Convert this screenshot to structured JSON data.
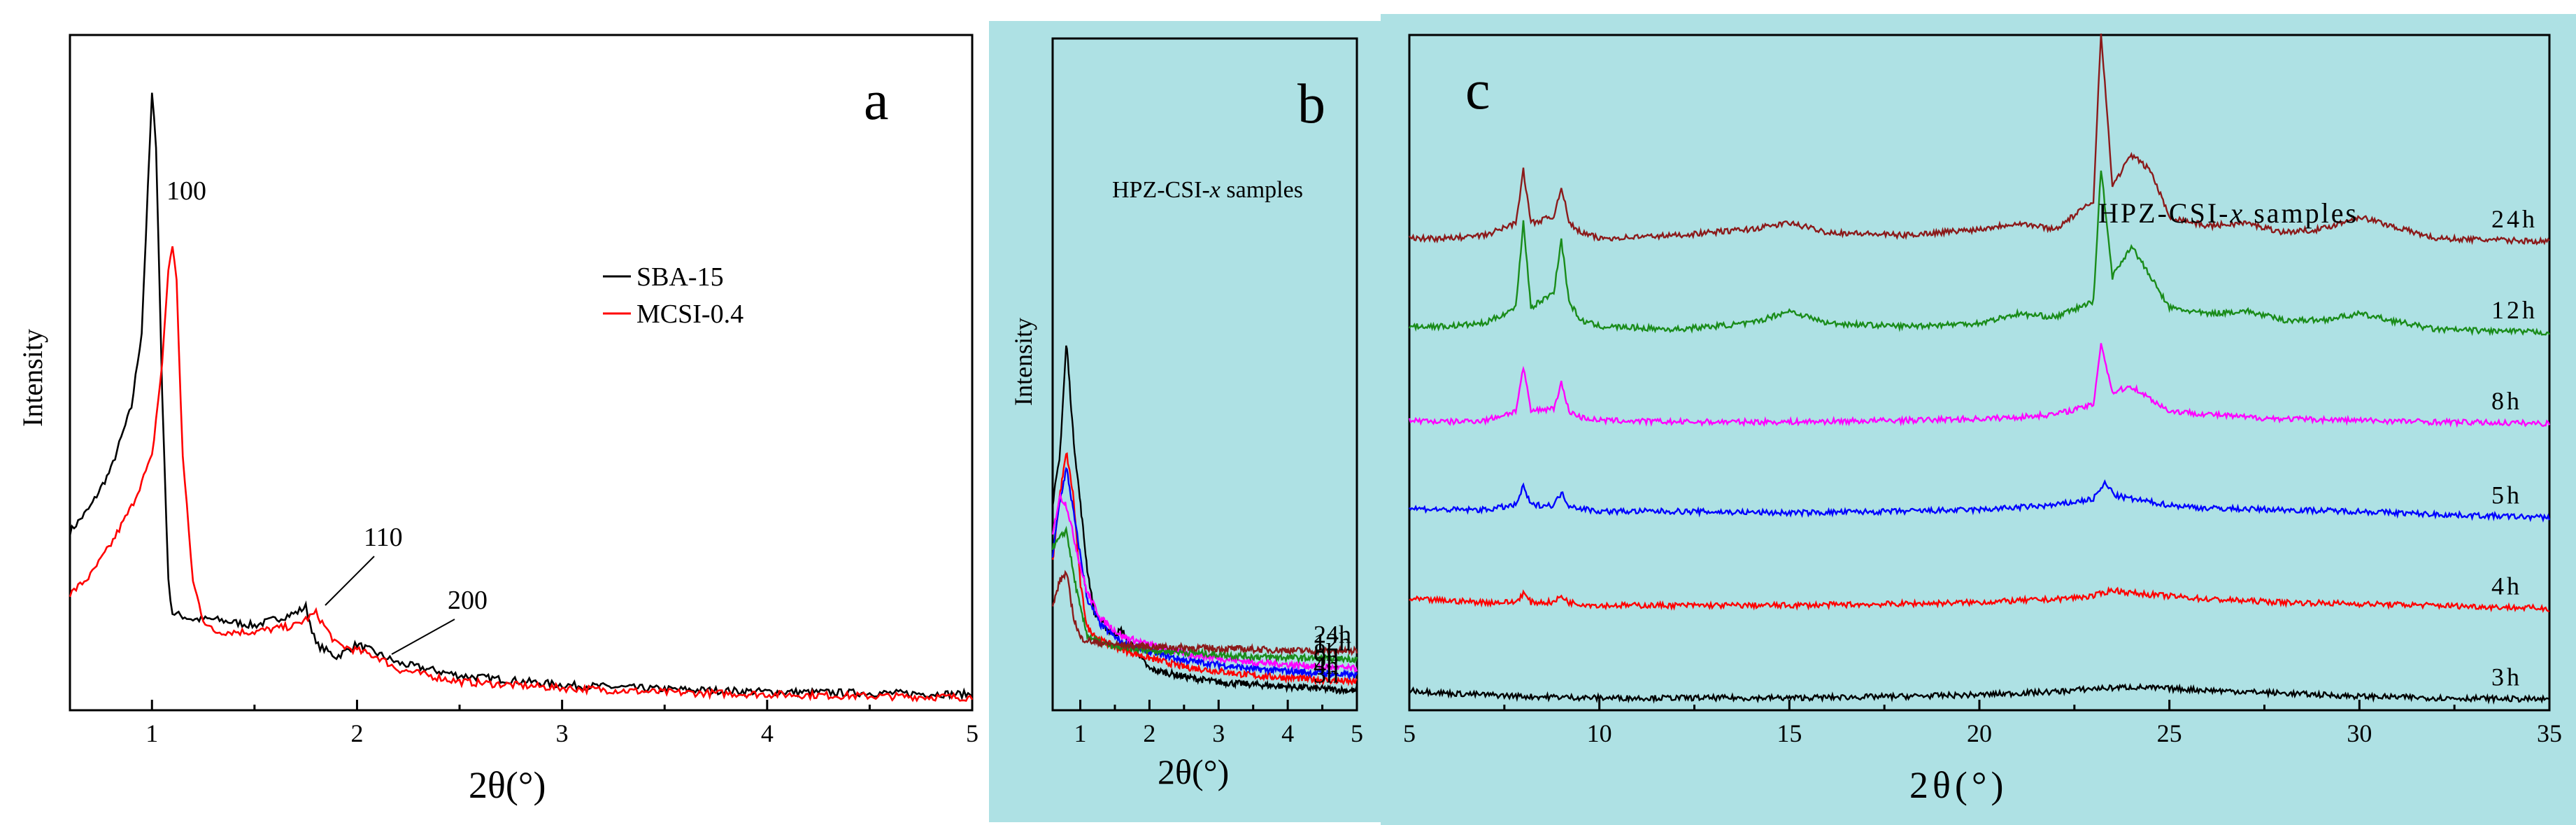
{
  "figure_labels": {
    "a": "a",
    "b": "b",
    "c": "c"
  },
  "colors": {
    "panel_bg": "#aee1e4",
    "black": "#000000",
    "red": "#ff0000",
    "green": "#1a8c1a",
    "blue": "#0000ff",
    "magenta": "#ff00ff",
    "maroon": "#8b1a1a"
  },
  "chart_data": [
    {
      "id": "a",
      "type": "line",
      "title": "a",
      "xlabel": "2θ(°)",
      "ylabel": "Intensity",
      "xlim": [
        0.6,
        5
      ],
      "ylim": [
        0,
        1
      ],
      "x_ticks": [
        "1",
        "2",
        "3",
        "4",
        "5"
      ],
      "legend": {
        "position": "right-middle",
        "entries": [
          "SBA-15",
          "MCSI-0.4"
        ]
      },
      "annotations": [
        "100",
        "110",
        "200"
      ],
      "series": [
        {
          "name": "SBA-15",
          "color": "#000000",
          "x": [
            0.6,
            0.7,
            0.8,
            0.9,
            0.95,
            1.0,
            1.02,
            1.05,
            1.08,
            1.1,
            1.2,
            1.3,
            1.5,
            1.7,
            1.75,
            1.8,
            1.9,
            2.0,
            2.2,
            2.5,
            3.0,
            3.5,
            4.0,
            4.5,
            5.0
          ],
          "y": [
            0.28,
            0.32,
            0.38,
            0.48,
            0.6,
            0.98,
            0.9,
            0.5,
            0.2,
            0.15,
            0.14,
            0.14,
            0.13,
            0.15,
            0.16,
            0.1,
            0.08,
            0.1,
            0.07,
            0.05,
            0.035,
            0.028,
            0.024,
            0.022,
            0.02
          ]
        },
        {
          "name": "MCSI-0.4",
          "color": "#ff0000",
          "x": [
            0.6,
            0.7,
            0.8,
            0.9,
            1.0,
            1.05,
            1.08,
            1.1,
            1.12,
            1.15,
            1.2,
            1.25,
            1.3,
            1.5,
            1.7,
            1.8,
            1.9,
            2.0,
            2.1,
            2.2,
            2.5,
            3.0,
            3.5,
            4.0,
            4.5,
            5.0
          ],
          "y": [
            0.18,
            0.21,
            0.26,
            0.32,
            0.4,
            0.55,
            0.7,
            0.74,
            0.68,
            0.4,
            0.2,
            0.14,
            0.12,
            0.12,
            0.13,
            0.15,
            0.1,
            0.09,
            0.08,
            0.06,
            0.04,
            0.03,
            0.023,
            0.02,
            0.017,
            0.015
          ]
        }
      ]
    },
    {
      "id": "b",
      "type": "line",
      "title": "b",
      "xlabel": "2θ(°)",
      "ylabel": "Intensity",
      "xlim": [
        0.6,
        5
      ],
      "x_ticks": [
        "1",
        "2",
        "3",
        "4",
        "5"
      ],
      "legend_title_parts": [
        "HPZ-CSI-",
        "x",
        " samples"
      ],
      "series": [
        {
          "name": "3h",
          "color": "#000000",
          "offset": 0.0,
          "x": [
            0.6,
            0.7,
            0.8,
            0.9,
            1.0,
            1.1,
            1.2,
            1.4,
            1.5,
            1.6,
            1.7,
            1.8,
            1.9,
            2.0,
            2.3,
            2.6,
            3.0,
            3.5,
            4.0,
            4.5,
            5.0
          ],
          "y": [
            0.45,
            0.55,
            0.82,
            0.6,
            0.45,
            0.3,
            0.2,
            0.16,
            0.15,
            0.16,
            0.13,
            0.12,
            0.09,
            0.07,
            0.06,
            0.05,
            0.04,
            0.035,
            0.03,
            0.025,
            0.02
          ]
        },
        {
          "name": "4h",
          "color": "#ff0000",
          "offset": 0.1,
          "x": [
            0.6,
            0.7,
            0.8,
            0.9,
            1.0,
            1.1,
            1.3,
            1.6,
            2.0,
            2.5,
            3.0,
            3.5,
            4.0,
            4.5,
            5.0
          ],
          "y": [
            0.3,
            0.45,
            0.55,
            0.45,
            0.25,
            0.15,
            0.12,
            0.1,
            0.08,
            0.06,
            0.05,
            0.04,
            0.035,
            0.03,
            0.025
          ]
        },
        {
          "name": "5h",
          "color": "#0000ff",
          "offset": 0.2,
          "x": [
            0.6,
            0.7,
            0.8,
            0.9,
            1.0,
            1.1,
            1.3,
            1.6,
            2.0,
            2.5,
            3.0,
            3.5,
            4.0,
            4.5,
            5.0
          ],
          "y": [
            0.3,
            0.42,
            0.5,
            0.4,
            0.3,
            0.2,
            0.14,
            0.1,
            0.08,
            0.06,
            0.05,
            0.04,
            0.035,
            0.03,
            0.025
          ]
        },
        {
          "name": "8h",
          "color": "#ff00ff",
          "offset": 0.3,
          "x": [
            0.6,
            0.7,
            0.8,
            0.9,
            1.0,
            1.1,
            1.3,
            1.6,
            2.0,
            2.5,
            3.0,
            3.5,
            4.0,
            4.5,
            5.0
          ],
          "y": [
            0.33,
            0.42,
            0.4,
            0.33,
            0.26,
            0.2,
            0.14,
            0.1,
            0.08,
            0.06,
            0.05,
            0.04,
            0.035,
            0.03,
            0.025
          ]
        },
        {
          "name": "12h",
          "color": "#1a8c1a",
          "offset": 0.45,
          "x": [
            0.6,
            0.7,
            0.8,
            0.9,
            1.0,
            1.1,
            1.3,
            1.6,
            2.0,
            2.5,
            3.0,
            3.5,
            4.0,
            4.5,
            5.0
          ],
          "y": [
            0.28,
            0.3,
            0.32,
            0.22,
            0.14,
            0.08,
            0.06,
            0.05,
            0.045,
            0.04,
            0.035,
            0.03,
            0.028,
            0.026,
            0.025
          ]
        },
        {
          "name": "24h",
          "color": "#8b1a1a",
          "offset": 0.6,
          "x": [
            0.6,
            0.7,
            0.8,
            0.9,
            1.0,
            1.2,
            1.5,
            2.0,
            2.5,
            3.0,
            3.5,
            4.0,
            4.5,
            5.0
          ],
          "y": [
            0.12,
            0.18,
            0.2,
            0.1,
            0.05,
            0.04,
            0.035,
            0.03,
            0.028,
            0.026,
            0.024,
            0.022,
            0.02,
            0.02
          ]
        }
      ]
    },
    {
      "id": "c",
      "type": "line",
      "title": "c",
      "xlabel": "2θ(°)",
      "xlim": [
        5,
        35
      ],
      "x_ticks": [
        "5",
        "10",
        "15",
        "20",
        "25",
        "30",
        "35"
      ],
      "legend_title_parts": [
        "HPZ-CSI-",
        "x",
        " samples"
      ],
      "series": [
        {
          "name": "3h",
          "color": "#000000",
          "offset": 0,
          "x": [
            5,
            6,
            8,
            10,
            12,
            15,
            18,
            20,
            22,
            23,
            24,
            25,
            26,
            28,
            30,
            32,
            35
          ],
          "y": [
            0.04,
            0.03,
            0.02,
            0.015,
            0.015,
            0.015,
            0.02,
            0.025,
            0.035,
            0.045,
            0.05,
            0.045,
            0.04,
            0.03,
            0.02,
            0.015,
            0.01
          ]
        },
        {
          "name": "4h",
          "color": "#ff0000",
          "offset": 1,
          "x": [
            5,
            6,
            7,
            7.8,
            8,
            8.2,
            8.8,
            9.0,
            9.2,
            9.5,
            10,
            12,
            15,
            18,
            20,
            22,
            23,
            23.5,
            24,
            25,
            26,
            28,
            30,
            32,
            35
          ],
          "y": [
            0.04,
            0.035,
            0.03,
            0.03,
            0.06,
            0.03,
            0.03,
            0.05,
            0.03,
            0.025,
            0.02,
            0.02,
            0.02,
            0.025,
            0.03,
            0.04,
            0.05,
            0.07,
            0.06,
            0.05,
            0.04,
            0.03,
            0.025,
            0.02,
            0.01
          ]
        },
        {
          "name": "5h",
          "color": "#0000ff",
          "offset": 2,
          "x": [
            5,
            6,
            7,
            7.8,
            8,
            8.2,
            8.8,
            9.0,
            9.2,
            9.5,
            10,
            12,
            15,
            18,
            20,
            22,
            23,
            23.3,
            23.6,
            24,
            25,
            26,
            28,
            30,
            32,
            35
          ],
          "y": [
            0.04,
            0.035,
            0.035,
            0.05,
            0.11,
            0.05,
            0.05,
            0.09,
            0.05,
            0.04,
            0.03,
            0.03,
            0.025,
            0.03,
            0.035,
            0.05,
            0.07,
            0.12,
            0.08,
            0.07,
            0.05,
            0.04,
            0.035,
            0.03,
            0.02,
            0.01
          ]
        },
        {
          "name": "8h",
          "color": "#ff00ff",
          "offset": 3,
          "x": [
            5,
            6,
            7,
            7.8,
            8,
            8.2,
            8.8,
            9.0,
            9.2,
            9.5,
            10,
            12,
            15,
            18,
            20,
            21,
            22,
            23,
            23.2,
            23.5,
            24,
            24.5,
            25,
            26,
            27,
            28,
            30,
            32,
            35
          ],
          "y": [
            0.03,
            0.025,
            0.03,
            0.06,
            0.2,
            0.06,
            0.07,
            0.15,
            0.06,
            0.04,
            0.03,
            0.025,
            0.025,
            0.03,
            0.035,
            0.04,
            0.05,
            0.08,
            0.28,
            0.12,
            0.14,
            0.1,
            0.06,
            0.05,
            0.04,
            0.035,
            0.03,
            0.025,
            0.02
          ]
        },
        {
          "name": "12h",
          "color": "#1a8c1a",
          "offset": 4,
          "x": [
            5,
            6,
            7,
            7.8,
            8,
            8.2,
            8.8,
            9.0,
            9.2,
            9.5,
            10,
            12,
            14,
            15,
            16,
            18,
            20,
            21,
            22,
            23,
            23.2,
            23.5,
            24,
            24.5,
            25,
            26,
            27,
            28,
            29,
            30,
            32,
            35
          ],
          "y": [
            0.04,
            0.04,
            0.05,
            0.1,
            0.38,
            0.1,
            0.15,
            0.32,
            0.12,
            0.06,
            0.04,
            0.03,
            0.05,
            0.09,
            0.05,
            0.04,
            0.05,
            0.08,
            0.07,
            0.12,
            0.55,
            0.2,
            0.3,
            0.2,
            0.1,
            0.08,
            0.09,
            0.06,
            0.06,
            0.08,
            0.03,
            0.02
          ]
        },
        {
          "name": "24h",
          "color": "#8b1a1a",
          "offset": 5,
          "x": [
            5,
            6,
            7,
            7.8,
            8,
            8.2,
            8.8,
            9.0,
            9.2,
            9.5,
            10,
            12,
            14,
            15,
            16,
            18,
            20,
            21,
            22,
            23,
            23.2,
            23.5,
            24,
            24.5,
            25,
            26,
            27,
            28,
            29,
            30,
            32,
            35
          ],
          "y": [
            0.03,
            0.03,
            0.04,
            0.08,
            0.25,
            0.08,
            0.1,
            0.2,
            0.08,
            0.05,
            0.03,
            0.04,
            0.06,
            0.08,
            0.05,
            0.04,
            0.06,
            0.08,
            0.06,
            0.15,
            0.7,
            0.2,
            0.3,
            0.25,
            0.1,
            0.07,
            0.08,
            0.05,
            0.06,
            0.1,
            0.03,
            0.02
          ]
        }
      ]
    }
  ]
}
